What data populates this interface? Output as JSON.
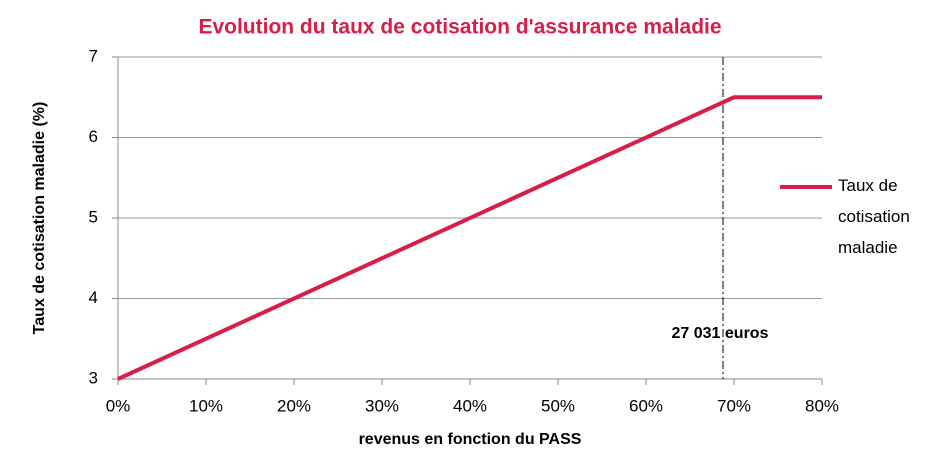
{
  "chart_data": {
    "type": "line",
    "title": "Evolution du taux de cotisation d'assurance maladie",
    "x_label": "revenus en fonction du PASS",
    "y_label": "Taux de cotisation maladie (%)",
    "x": [
      0,
      70,
      80
    ],
    "series": [
      {
        "name": "Taux de cotisation maladie",
        "color": "#d81e48",
        "values": [
          3,
          6.5,
          6.5
        ]
      }
    ],
    "xlim": [
      0,
      80
    ],
    "xticks": [
      {
        "value": 0,
        "label": "0%"
      },
      {
        "value": 10,
        "label": "10%"
      },
      {
        "value": 20,
        "label": "20%"
      },
      {
        "value": 30,
        "label": "30%"
      },
      {
        "value": 40,
        "label": "40%"
      },
      {
        "value": 50,
        "label": "50%"
      },
      {
        "value": 60,
        "label": "60%"
      },
      {
        "value": 70,
        "label": "70%"
      },
      {
        "value": 80,
        "label": "80%"
      }
    ],
    "ylim": [
      3,
      7
    ],
    "yticks": [
      3,
      4,
      5,
      6,
      7
    ],
    "grid": true,
    "legend": "right",
    "annotation": {
      "text": "27 031 euros",
      "x": 68.75
    }
  }
}
